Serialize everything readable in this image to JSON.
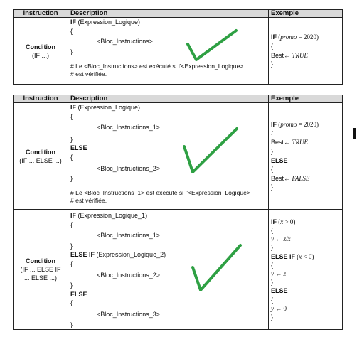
{
  "headers": {
    "instruction": "Instruction",
    "description": "Description",
    "exemple": "Exemple"
  },
  "t1": {
    "cond_title": "Condition",
    "cond_sub": "(IF ...)",
    "desc": {
      "if_kw": "IF",
      "if_rest": " (Expression_Logique)",
      "open": "{",
      "block": "<Bloc_Instructions>",
      "close": "}",
      "note1": "# Le <Bloc_Instructions> est exécuté si l'<Expression_Logique>",
      "note2": "# est vérifiée."
    },
    "ex": {
      "if_kw": "IF",
      "cond_open": " (",
      "var": "promo",
      "op": " = 2020)",
      "open": "{",
      "assign": "Best← ",
      "val": "TRUE",
      "close": "}"
    }
  },
  "t2": {
    "r1": {
      "cond_title": "Condition",
      "cond_sub": "(IF ... ELSE ...)",
      "desc": {
        "if_kw": "IF",
        "if_rest": " (Expression_Logique)",
        "open": "{",
        "block1": "<Bloc_Instructions_1>",
        "close": "}",
        "else_kw": "ELSE",
        "block2": "<Bloc_Instructions_2>",
        "note1": "# Le <Bloc_Instructions_1> est exécuté si l'<Expression_Logique>",
        "note2": "# est vérifiée."
      },
      "ex": {
        "if_kw": "IF",
        "cond_open": " (",
        "var": "promo",
        "op": " = 2020)",
        "open": "{",
        "assign": "Best← ",
        "val_true": "TRUE",
        "close": "}",
        "else_kw": "ELSE",
        "val_false": "FALSE"
      }
    },
    "r2": {
      "cond_title": "Condition",
      "cond_sub1": "(IF ... ELSE IF",
      "cond_sub2": "... ELSE ...)",
      "desc": {
        "if_kw": "IF",
        "if_rest": " (Expression_Logique_1)",
        "open": "{",
        "block1": "<Bloc_Instructions_1>",
        "close": "}",
        "elseif_kw": "ELSE IF",
        "elseif_rest": " (Expression_Logique_2)",
        "block2": "<Bloc_Instructions_2>",
        "else_kw": "ELSE",
        "block3": "<Bloc_Instructions_3>"
      },
      "ex": {
        "if_kw": "IF",
        "c1_open": " (",
        "x1": "x",
        "c1_rest": " > 0)",
        "open": "{",
        "y1": "y",
        "a1": " ← ",
        "e1": "z/x",
        "close": "}",
        "elseif_kw": "ELSE IF",
        "c2_open": " (",
        "x2": "x",
        "c2_rest": " < 0)",
        "y2": "y",
        "a2": " ← ",
        "e2": "z",
        "else_kw": "ELSE",
        "y3": "y",
        "a3": " ← ",
        "e3": "0"
      }
    }
  },
  "colors": {
    "header_bg": "#d9d9d9",
    "check": "#2ea043",
    "border": "#222222"
  },
  "icons": {
    "checkmark": "check-icon"
  }
}
